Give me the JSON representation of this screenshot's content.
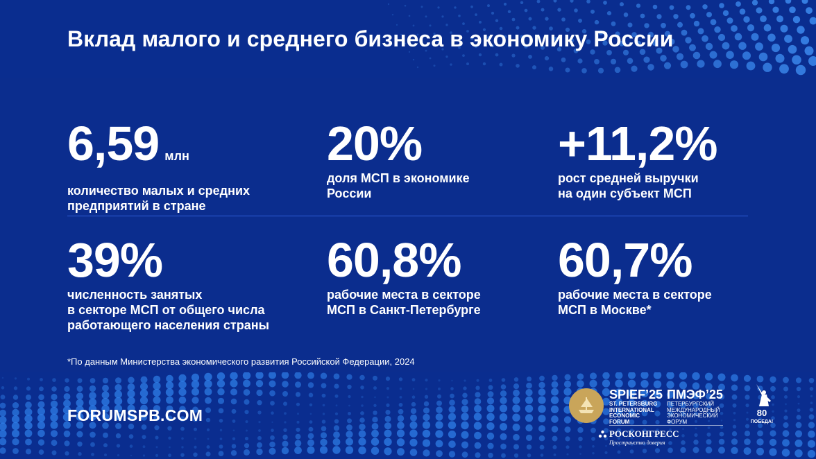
{
  "title": "Вклад малого и среднего бизнеса в экономику России",
  "stats": [
    {
      "value": "6,59",
      "unit": "млн",
      "description": "количество малых и средних\nпредприятий в стране"
    },
    {
      "value": "20%",
      "unit": "",
      "description": "доля МСП в экономике\nРоссии"
    },
    {
      "value": "+11,2%",
      "unit": "",
      "description": "рост средней выручки\nна один субъект МСП"
    },
    {
      "value": "39%",
      "unit": "",
      "description": "численность занятых\nв секторе МСП от общего числа\nработающего населения страны"
    },
    {
      "value": "60,8%",
      "unit": "",
      "description": "рабочие места в секторе\nМСП в Санкт-Петербурге"
    },
    {
      "value": "60,7%",
      "unit": "",
      "description": "рабочие места в секторе\nМСП в Москве*"
    }
  ],
  "footnote": "*По данным Министерства экономического развития Российской Федерации, 2024",
  "website": "FORUMSPB.COM",
  "logos": {
    "spief_en_title": "SPIEF’25",
    "spief_en_sub": "ST. PETERSBURG\nINTERNATIONAL\nECONOMIC\nFORUM",
    "spief_ru_title": "ПМЭФ’25",
    "spief_ru_sub": "ПЕТЕРБУРГСКИЙ\nМЕЖДУНАРОДНЫЙ\nЭКОНОМИЧЕСКИЙ\nФОРУМ",
    "roscongress_name": "РОСКОНГРЕСС",
    "roscongress_slogan": "Пространство доверия",
    "victory_number": "80",
    "victory_text": "ПОБЕДА!"
  },
  "colors": {
    "background": "#0a2d8f",
    "text": "#ffffff",
    "divider": "#2f5fd8",
    "emblem_gold": "#c9a55a"
  }
}
